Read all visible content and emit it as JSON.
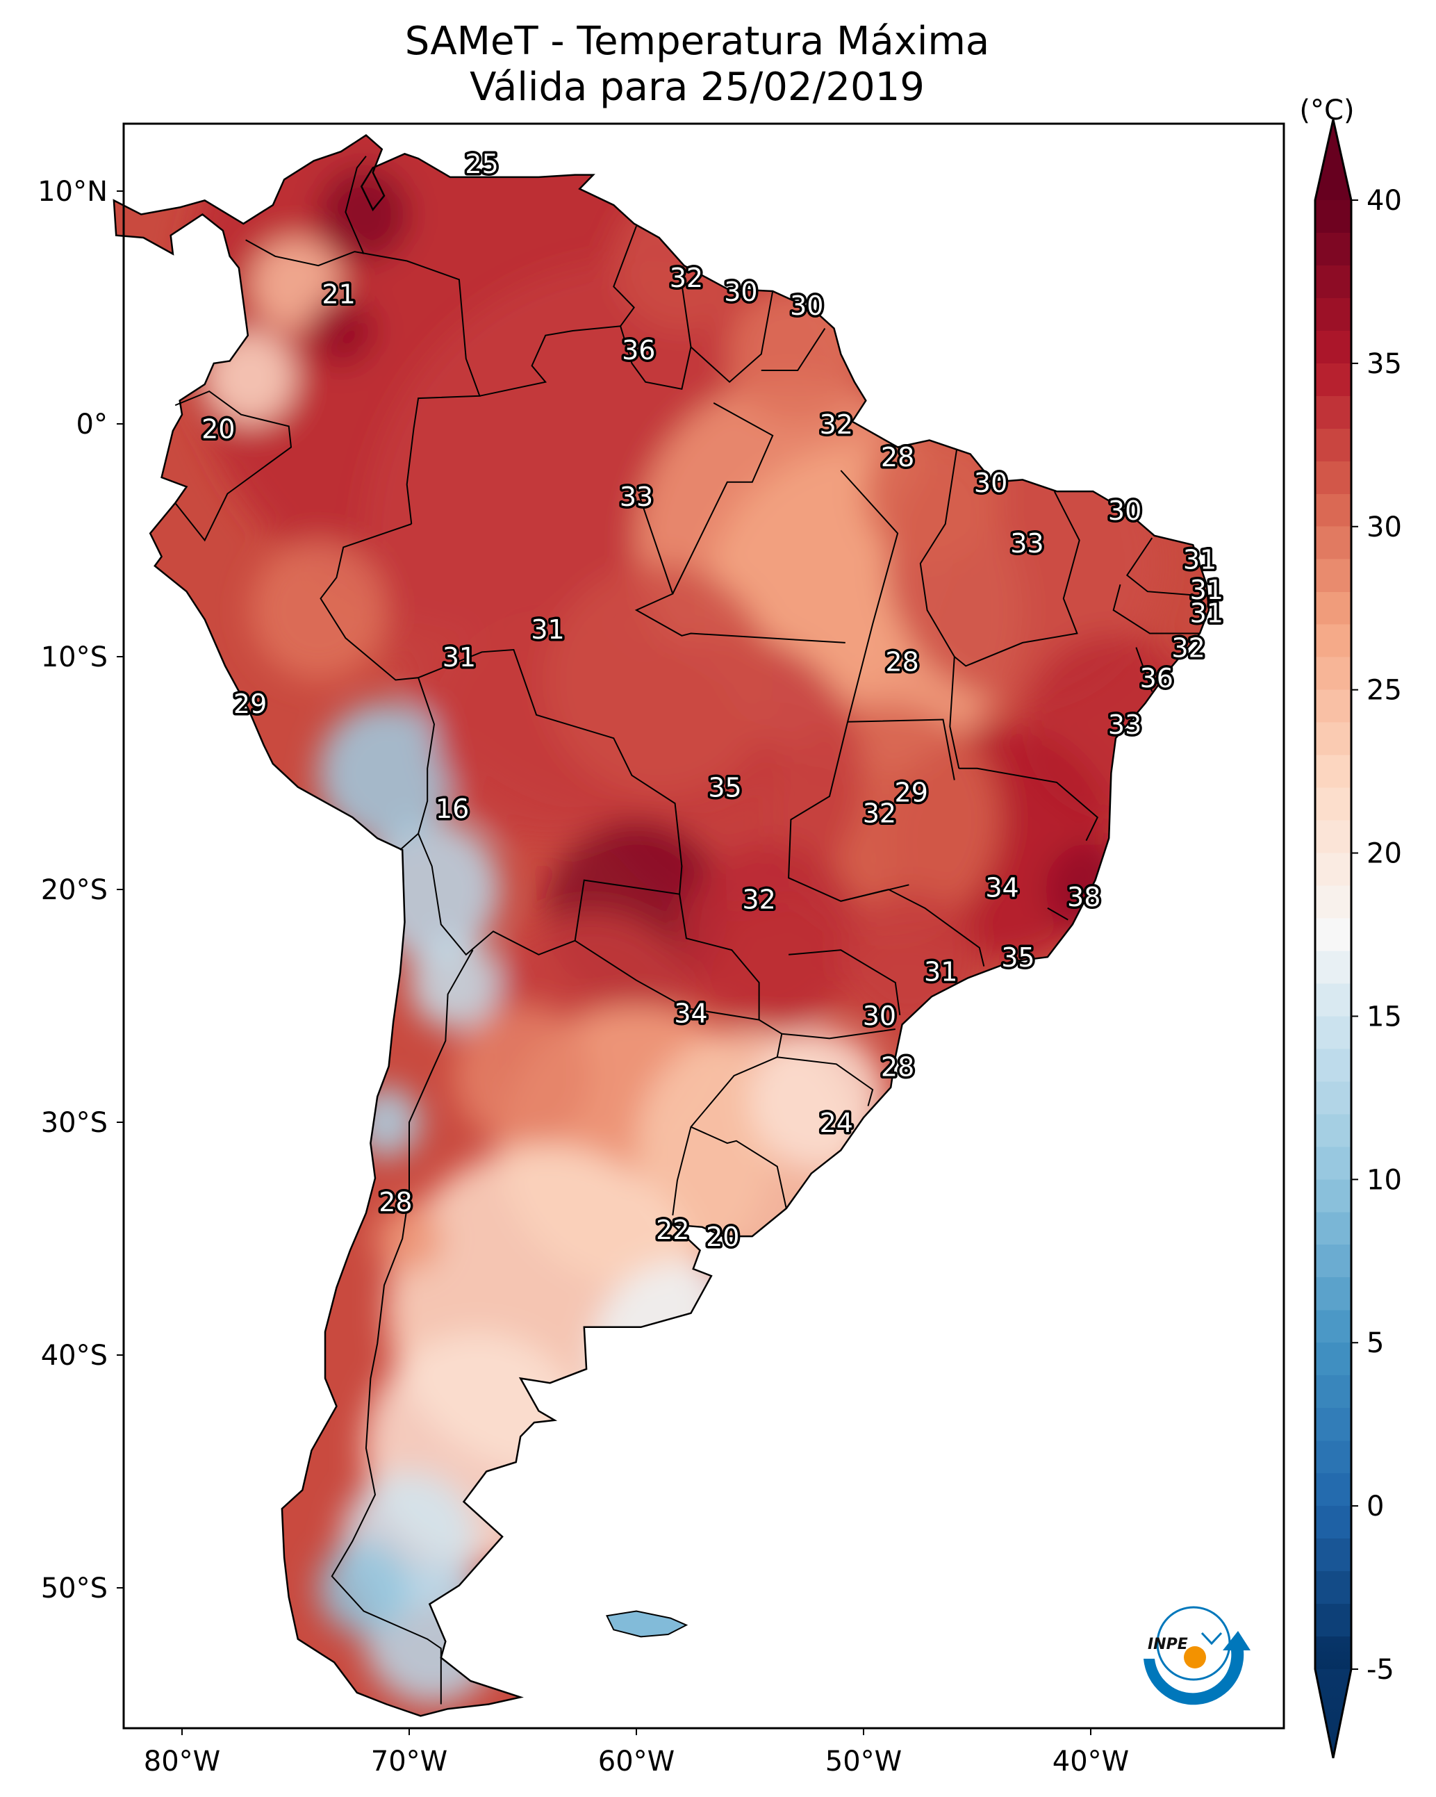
{
  "header": {
    "title_line1": "SAMeT - Temperatura Máxima",
    "title_line2": "Válida para 25/02/2019"
  },
  "chart_data": {
    "type": "heatmap",
    "subtype": "geographic temperature map",
    "title": "SAMeT - Temperatura Máxima",
    "subtitle": "Válida para 25/02/2019",
    "region": "South America",
    "variable": "Maximum temperature",
    "units": "(°C)",
    "x_axis": {
      "type": "longitude",
      "range": [
        -83,
        -29
      ],
      "ticks": [
        -80,
        -70,
        -60,
        -50,
        -40
      ],
      "tick_labels": [
        "80°W",
        "70°W",
        "60°W",
        "50°W",
        "40°W"
      ]
    },
    "y_axis": {
      "type": "latitude",
      "range": [
        -56,
        13
      ],
      "ticks": [
        10,
        0,
        -10,
        -20,
        -30,
        -40,
        -50
      ],
      "tick_labels": [
        "10°N",
        "0°",
        "10°S",
        "20°S",
        "30°S",
        "40°S",
        "50°S"
      ]
    },
    "colorbar": {
      "label": "(°C)",
      "colormap": "RdBu_r",
      "range": [
        -5,
        40
      ],
      "extend": "both",
      "ticks": [
        40,
        35,
        30,
        25,
        20,
        15,
        10,
        5,
        0,
        -5
      ],
      "tick_labels": [
        "40",
        "35",
        "30",
        "25",
        "20",
        "15",
        "10",
        "5",
        "0",
        "-5"
      ],
      "stops": [
        {
          "value": -5,
          "color": "#053061"
        },
        {
          "value": 0,
          "color": "#2166ac"
        },
        {
          "value": 5,
          "color": "#4393c3"
        },
        {
          "value": 10,
          "color": "#92c5de"
        },
        {
          "value": 15,
          "color": "#d1e5f0"
        },
        {
          "value": 17.5,
          "color": "#f7f7f7"
        },
        {
          "value": 22,
          "color": "#fddbc7"
        },
        {
          "value": 27,
          "color": "#f4a582"
        },
        {
          "value": 31,
          "color": "#d6604d"
        },
        {
          "value": 35,
          "color": "#b2182b"
        },
        {
          "value": 40,
          "color": "#67001f"
        }
      ]
    },
    "station_labels": [
      {
        "lon": -66.8,
        "lat": 11.2,
        "value": 25
      },
      {
        "lon": -73.1,
        "lat": 5.6,
        "value": 21
      },
      {
        "lon": -57.8,
        "lat": 6.3,
        "value": 32
      },
      {
        "lon": -55.4,
        "lat": 5.7,
        "value": 30
      },
      {
        "lon": -52.5,
        "lat": 5.1,
        "value": 30
      },
      {
        "lon": -59.9,
        "lat": 3.2,
        "value": 36
      },
      {
        "lon": -78.4,
        "lat": -0.2,
        "value": 20
      },
      {
        "lon": -51.2,
        "lat": 0.0,
        "value": 32
      },
      {
        "lon": -48.5,
        "lat": -1.4,
        "value": 28
      },
      {
        "lon": -44.4,
        "lat": -2.5,
        "value": 30
      },
      {
        "lon": -38.5,
        "lat": -3.7,
        "value": 30
      },
      {
        "lon": -60.0,
        "lat": -3.1,
        "value": 33
      },
      {
        "lon": -42.8,
        "lat": -5.1,
        "value": 33
      },
      {
        "lon": -35.2,
        "lat": -5.8,
        "value": 31
      },
      {
        "lon": -34.9,
        "lat": -7.1,
        "value": 31
      },
      {
        "lon": -34.9,
        "lat": -8.1,
        "value": 31
      },
      {
        "lon": -35.7,
        "lat": -9.6,
        "value": 32
      },
      {
        "lon": -63.9,
        "lat": -8.8,
        "value": 31
      },
      {
        "lon": -67.8,
        "lat": -10.0,
        "value": 31
      },
      {
        "lon": -48.3,
        "lat": -10.2,
        "value": 28
      },
      {
        "lon": -37.1,
        "lat": -10.9,
        "value": 36
      },
      {
        "lon": -77.0,
        "lat": -12.0,
        "value": 29
      },
      {
        "lon": -38.5,
        "lat": -12.9,
        "value": 33
      },
      {
        "lon": -56.1,
        "lat": -15.6,
        "value": 35
      },
      {
        "lon": -47.9,
        "lat": -15.8,
        "value": 29
      },
      {
        "lon": -49.3,
        "lat": -16.7,
        "value": 32
      },
      {
        "lon": -68.1,
        "lat": -16.5,
        "value": 16
      },
      {
        "lon": -43.9,
        "lat": -19.9,
        "value": 34
      },
      {
        "lon": -40.3,
        "lat": -20.3,
        "value": 38
      },
      {
        "lon": -54.6,
        "lat": -20.4,
        "value": 32
      },
      {
        "lon": -43.2,
        "lat": -22.9,
        "value": 35
      },
      {
        "lon": -46.6,
        "lat": -23.5,
        "value": 31
      },
      {
        "lon": -57.6,
        "lat": -25.3,
        "value": 34
      },
      {
        "lon": -49.3,
        "lat": -25.4,
        "value": 30
      },
      {
        "lon": -48.5,
        "lat": -27.6,
        "value": 28
      },
      {
        "lon": -51.2,
        "lat": -30.0,
        "value": 24
      },
      {
        "lon": -70.6,
        "lat": -33.4,
        "value": 28
      },
      {
        "lon": -58.4,
        "lat": -34.6,
        "value": 22
      },
      {
        "lon": -56.2,
        "lat": -34.9,
        "value": 20
      }
    ]
  },
  "logo": {
    "text": "INPE",
    "colors": {
      "ring": "#0077bb",
      "sun": "#f39200"
    }
  }
}
